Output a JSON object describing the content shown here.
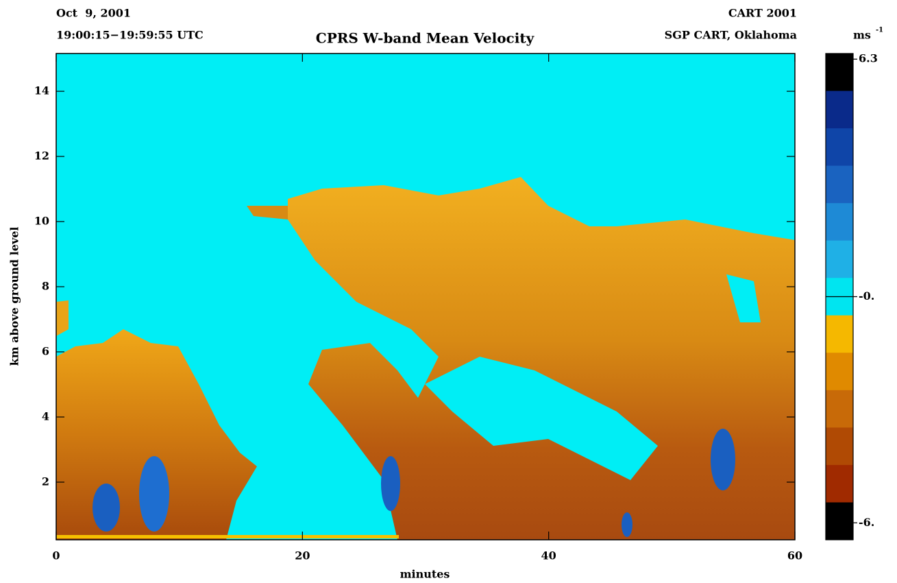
{
  "header": {
    "date": "Oct  9, 2001",
    "time_range": "19:00:15−19:59:55 UTC",
    "project": "CART 2001",
    "site": "SGP CART, Oklahoma"
  },
  "chart_data": {
    "type": "heatmap",
    "title": "CPRS W-band Mean Velocity",
    "xlabel": "minutes",
    "ylabel": "km above ground level",
    "xlim": [
      0,
      60
    ],
    "xticks": [
      0,
      20,
      40,
      60
    ],
    "ylim": [
      0.23,
      15.16
    ],
    "yticks": [
      2,
      4,
      6,
      8,
      10,
      12,
      14
    ],
    "colorbar": {
      "unit": "ms",
      "unit_exponent": "-1",
      "clim": [
        -6.45,
        6.45
      ],
      "ticks": [
        6.3,
        {
          "value": 0,
          "label": "-0."
        },
        {
          "value": -6,
          "label": "-6."
        }
      ],
      "colors": [
        "#000000",
        "#0a2a8a",
        "#0f45a8",
        "#1a63c0",
        "#1e8ad6",
        "#1fb0e6",
        "#00e5f0",
        "#f5b800",
        "#e08a00",
        "#c86a08",
        "#b04a04",
        "#a02a00",
        "#000000"
      ]
    }
  }
}
